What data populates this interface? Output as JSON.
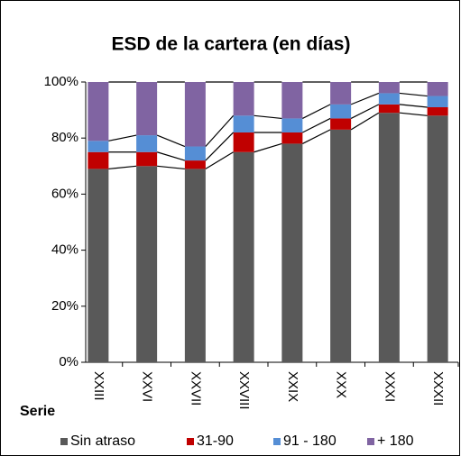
{
  "chart_data": {
    "type": "stacked_bar_100",
    "title": "ESD  de la cartera (en días)",
    "x_label": "Serie",
    "categories": [
      "XXIII",
      "XXVI",
      "XXVII",
      "XXVIII",
      "XXIX",
      "XXX",
      "XXXI",
      "XXXII"
    ],
    "series": [
      {
        "name": "Sin atraso",
        "color": "#595959",
        "values": [
          69,
          70,
          69,
          75,
          78,
          83,
          89,
          88
        ]
      },
      {
        "name": "31-90",
        "color": "#c00000",
        "values": [
          6,
          5,
          3,
          7,
          4,
          4,
          3,
          3
        ]
      },
      {
        "name": "91 - 180",
        "color": "#558ed5",
        "values": [
          4,
          6,
          5,
          6,
          5,
          5,
          4,
          4
        ]
      },
      {
        "name": "+ 180",
        "color": "#8064a2",
        "values": [
          21,
          19,
          23,
          12,
          13,
          8,
          4,
          5
        ]
      }
    ],
    "ylim": [
      0,
      100
    ],
    "yticks": [
      {
        "value": 0,
        "label": "0%"
      },
      {
        "value": 20,
        "label": "20%"
      },
      {
        "value": 40,
        "label": "40%"
      },
      {
        "value": 60,
        "label": "60%"
      },
      {
        "value": 80,
        "label": "80%"
      },
      {
        "value": 100,
        "label": "100%"
      }
    ],
    "series_lines": true,
    "legend": "bottom"
  }
}
